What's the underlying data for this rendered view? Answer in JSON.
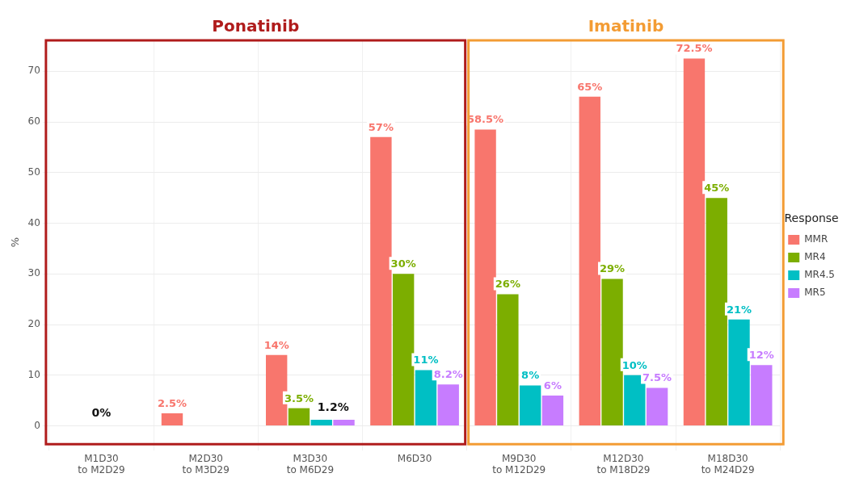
{
  "chart_data": {
    "type": "bar",
    "ylabel": "%",
    "legend_title": "Response",
    "categories": [
      "M1D30\nto M2D29",
      "M2D30\nto M3D29",
      "M3D30\nto M6D29",
      "M6D30",
      "M9D30\nto M12D29",
      "M12D30\nto M18D29",
      "M18D30\nto M24D29"
    ],
    "series": [
      {
        "name": "MMR",
        "color": "#f8766d",
        "values": [
          0,
          2.5,
          14,
          57,
          58.5,
          65,
          72.5
        ],
        "value_labels": [
          null,
          "2.5%",
          "14%",
          "57%",
          "58.5%",
          "65%",
          "72.5%"
        ]
      },
      {
        "name": "MR4",
        "color": "#7cae00",
        "values": [
          0,
          0,
          3.5,
          30,
          26,
          29,
          45
        ],
        "value_labels": [
          null,
          null,
          "3.5%",
          "30%",
          "26%",
          "29%",
          "45%"
        ]
      },
      {
        "name": "MR4.5",
        "color": "#00bfc4",
        "values": [
          0,
          0,
          1.2,
          11,
          8,
          10,
          21
        ],
        "value_labels": [
          null,
          null,
          null,
          "11%",
          "8%",
          "10%",
          "21%"
        ]
      },
      {
        "name": "MR5",
        "color": "#c77cff",
        "values": [
          0,
          0,
          1.2,
          8.2,
          6,
          7.5,
          12
        ],
        "value_labels": [
          null,
          null,
          null,
          "8.2%",
          "6%",
          "7.5%",
          "12%"
        ]
      }
    ],
    "annotations": [
      "Ponatinib",
      "Imatinib",
      {
        "text": "0%",
        "x": "M1D30\nto M2D29",
        "y": 0
      },
      {
        "text": "1.2%",
        "x": "M3D30\nto M6D29",
        "y": 1.2
      }
    ],
    "ylim": [
      -3.6,
      76.1
    ],
    "yticks": [
      0,
      10,
      20,
      30,
      40,
      50,
      60,
      70
    ],
    "grid": true,
    "legend": "right"
  }
}
